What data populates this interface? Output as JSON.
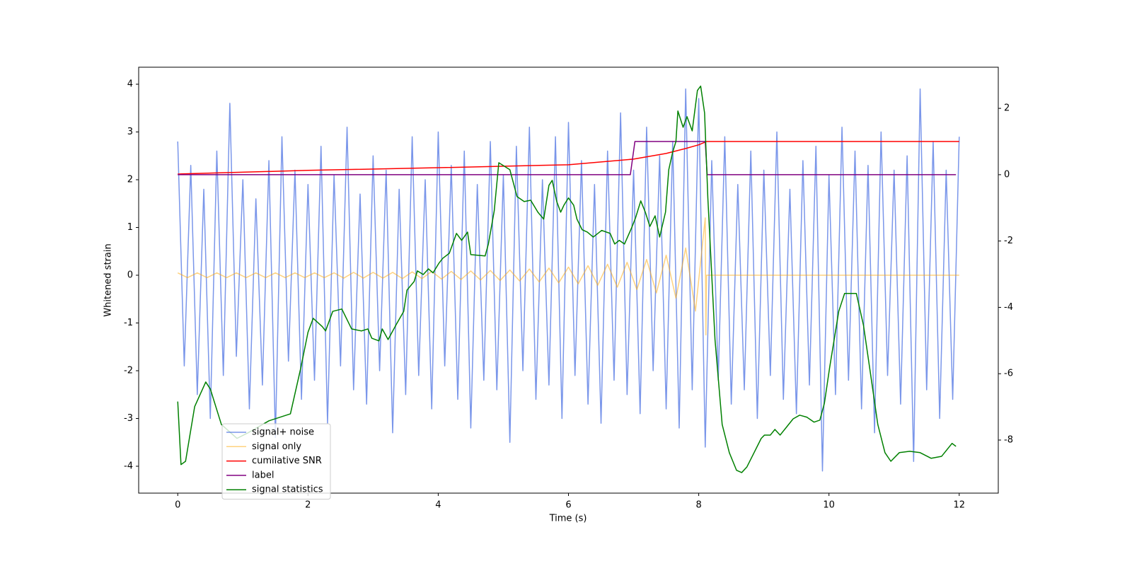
{
  "chart_data": {
    "type": "line",
    "xlabel": "Time (s)",
    "ylabel": "Whitened strain",
    "xlim": [
      -0.6,
      12.6
    ],
    "xticks": [
      0,
      2,
      4,
      6,
      8,
      10,
      12
    ],
    "ylim": [
      -4.563,
      4.356
    ],
    "yticks": [
      -4,
      -3,
      -2,
      -1,
      0,
      1,
      2,
      3,
      4
    ],
    "y2lim": [
      -9.6,
      3.24
    ],
    "y2ticks": [
      -8,
      -6,
      -4,
      -2,
      0,
      2
    ],
    "legend": "lower left",
    "series": [
      {
        "name": "signal+ noise",
        "color": "royalblue",
        "alpha": 0.7,
        "x": [
          0,
          0.1,
          0.2,
          0.3,
          0.4,
          0.5,
          0.6,
          0.7,
          0.8,
          0.9,
          1,
          1.1,
          1.2,
          1.3,
          1.4,
          1.5,
          1.6,
          1.7,
          1.8,
          1.9,
          2,
          2.1,
          2.2,
          2.3,
          2.4,
          2.5,
          2.6,
          2.7,
          2.8,
          2.9,
          3,
          3.1,
          3.2,
          3.3,
          3.4,
          3.5,
          3.6,
          3.7,
          3.8,
          3.9,
          4,
          4.1,
          4.2,
          4.3,
          4.4,
          4.5,
          4.6,
          4.7,
          4.8,
          4.9,
          5,
          5.1,
          5.2,
          5.3,
          5.4,
          5.5,
          5.6,
          5.7,
          5.8,
          5.9,
          6,
          6.1,
          6.2,
          6.3,
          6.4,
          6.5,
          6.6,
          6.7,
          6.8,
          6.9,
          7,
          7.1,
          7.2,
          7.3,
          7.4,
          7.5,
          7.6,
          7.7,
          7.8,
          7.9,
          8,
          8.1,
          8.2,
          8.3,
          8.4,
          8.5,
          8.6,
          8.7,
          8.8,
          8.9,
          9,
          9.1,
          9.2,
          9.3,
          9.4,
          9.5,
          9.6,
          9.7,
          9.8,
          9.9,
          10,
          10.1,
          10.2,
          10.3,
          10.4,
          10.5,
          10.6,
          10.7,
          10.8,
          10.9,
          11,
          11.1,
          11.2,
          11.3,
          11.4,
          11.5,
          11.6,
          11.7,
          11.8,
          11.9,
          12
        ],
        "values": [
          2.8,
          -1.9,
          2.3,
          -2.5,
          1.8,
          -3.0,
          2.6,
          -2.1,
          3.6,
          -1.7,
          2.0,
          -2.8,
          1.6,
          -2.3,
          2.4,
          -3.4,
          2.9,
          -1.8,
          2.2,
          -2.6,
          1.9,
          -2.2,
          2.7,
          -3.1,
          2.1,
          -1.9,
          3.1,
          -2.4,
          1.7,
          -2.7,
          2.5,
          -2.0,
          2.2,
          -3.3,
          1.8,
          -2.5,
          2.9,
          -2.1,
          2.0,
          -2.8,
          3.0,
          -1.9,
          2.3,
          -2.6,
          2.6,
          -3.2,
          1.9,
          -2.2,
          2.8,
          -2.4,
          2.1,
          -3.5,
          2.7,
          -2.0,
          3.1,
          -2.6,
          2.0,
          -2.3,
          2.9,
          -3.0,
          3.2,
          -2.1,
          2.4,
          -2.7,
          1.9,
          -3.1,
          2.6,
          -2.2,
          3.4,
          -2.5,
          2.2,
          -2.9,
          3.1,
          -2.0,
          2.5,
          -2.8,
          2.8,
          -3.2,
          3.9,
          -2.4,
          3.7,
          -3.6,
          2.4,
          -2.2,
          2.9,
          -2.7,
          1.9,
          -2.4,
          2.6,
          -3.0,
          2.2,
          -2.1,
          3.0,
          -2.6,
          1.8,
          -2.9,
          2.4,
          -2.3,
          2.7,
          -4.1,
          2.1,
          -2.5,
          3.1,
          -2.2,
          2.6,
          -2.8,
          2.3,
          -3.3,
          3.0,
          -2.1,
          2.2,
          -2.7,
          2.5,
          -3.9,
          3.9,
          -2.4,
          2.8,
          -3.0,
          2.2,
          -2.6,
          2.9
        ]
      },
      {
        "name": "signal only",
        "color": "orange",
        "alpha": 0.5,
        "x": [
          0,
          0.15,
          0.3,
          0.45,
          0.6,
          0.75,
          0.9,
          1.05,
          1.2,
          1.35,
          1.5,
          1.65,
          1.8,
          1.95,
          2.1,
          2.25,
          2.4,
          2.55,
          2.7,
          2.85,
          3.0,
          3.15,
          3.3,
          3.45,
          3.6,
          3.75,
          3.9,
          4.05,
          4.2,
          4.35,
          4.5,
          4.65,
          4.8,
          4.95,
          5.1,
          5.25,
          5.4,
          5.55,
          5.7,
          5.85,
          6.0,
          6.15,
          6.3,
          6.45,
          6.6,
          6.75,
          6.9,
          7.05,
          7.2,
          7.35,
          7.5,
          7.65,
          7.8,
          7.95,
          8.1,
          8.11,
          8.12,
          12
        ],
        "values": [
          0.05,
          -0.05,
          0.05,
          -0.05,
          0.05,
          -0.05,
          0.05,
          -0.05,
          0.05,
          -0.05,
          0.05,
          -0.05,
          0.05,
          -0.05,
          0.05,
          -0.05,
          0.05,
          -0.06,
          0.06,
          -0.06,
          0.06,
          -0.06,
          0.06,
          -0.07,
          0.07,
          -0.07,
          0.08,
          -0.08,
          0.08,
          -0.09,
          0.09,
          -0.1,
          0.1,
          -0.11,
          0.11,
          -0.12,
          0.13,
          -0.14,
          0.15,
          -0.16,
          0.17,
          -0.18,
          0.2,
          -0.21,
          0.23,
          -0.25,
          0.27,
          -0.3,
          0.33,
          -0.37,
          0.42,
          -0.48,
          0.57,
          -0.75,
          1.2,
          -1.25,
          0,
          0
        ]
      },
      {
        "name": "cumilative SNR",
        "color": "red",
        "axis": "y2",
        "x": [
          0,
          2,
          4,
          6,
          7,
          7.5,
          7.8,
          8.0,
          8.12,
          12
        ],
        "values": [
          0.02,
          0.13,
          0.21,
          0.3,
          0.47,
          0.64,
          0.79,
          0.9,
          1.0,
          1.0
        ]
      },
      {
        "name": "label",
        "color": "purple",
        "axis": "y2",
        "x": [
          0,
          6.95,
          7.02,
          8.1,
          8.13,
          11.95
        ],
        "values": [
          0,
          0,
          1,
          1,
          0,
          0
        ]
      },
      {
        "name": "signal statistics",
        "color": "green",
        "axis": "y2",
        "x": [
          0.0,
          0.05,
          0.12,
          0.26,
          0.43,
          0.5,
          0.67,
          0.91,
          1.08,
          1.4,
          1.73,
          1.89,
          2.0,
          2.08,
          2.22,
          2.27,
          2.38,
          2.52,
          2.67,
          2.82,
          2.92,
          2.98,
          3.09,
          3.14,
          3.23,
          3.36,
          3.47,
          3.52,
          3.63,
          3.68,
          3.77,
          3.85,
          3.92,
          4.01,
          4.07,
          4.17,
          4.28,
          4.36,
          4.45,
          4.5,
          4.72,
          4.77,
          4.86,
          4.93,
          5.1,
          5.21,
          5.32,
          5.42,
          5.53,
          5.62,
          5.7,
          5.75,
          5.82,
          5.88,
          5.93,
          6.0,
          6.08,
          6.13,
          6.21,
          6.29,
          6.38,
          6.51,
          6.64,
          6.71,
          6.78,
          6.86,
          6.97,
          7.03,
          7.11,
          7.18,
          7.25,
          7.33,
          7.4,
          7.49,
          7.54,
          7.6,
          7.65,
          7.68,
          7.76,
          7.82,
          7.9,
          7.98,
          8.03,
          8.09,
          8.14,
          8.25,
          8.36,
          8.47,
          8.58,
          8.66,
          8.74,
          8.85,
          8.96,
          9.01,
          9.1,
          9.17,
          9.25,
          9.34,
          9.45,
          9.55,
          9.66,
          9.77,
          9.86,
          9.93,
          10.01,
          10.15,
          10.24,
          10.42,
          10.53,
          10.64,
          10.75,
          10.86,
          10.95,
          11.08,
          11.24,
          11.4,
          11.57,
          11.73,
          11.89,
          11.95
        ],
        "values": [
          -6.84,
          -8.74,
          -8.64,
          -6.99,
          -6.25,
          -6.46,
          -7.53,
          -7.95,
          -7.78,
          -7.42,
          -7.21,
          -5.82,
          -4.75,
          -4.33,
          -4.58,
          -4.71,
          -4.12,
          -4.05,
          -4.65,
          -4.71,
          -4.65,
          -4.93,
          -5.01,
          -4.65,
          -4.97,
          -4.5,
          -4.12,
          -3.48,
          -3.22,
          -2.9,
          -3.01,
          -2.84,
          -2.96,
          -2.67,
          -2.52,
          -2.37,
          -1.77,
          -1.98,
          -1.73,
          -2.41,
          -2.45,
          -2.09,
          -1.09,
          0.36,
          0.15,
          -0.66,
          -0.81,
          -0.77,
          -1.13,
          -1.34,
          -0.32,
          -0.17,
          -0.81,
          -1.13,
          -0.92,
          -0.7,
          -0.92,
          -1.34,
          -1.66,
          -1.73,
          -1.88,
          -1.68,
          -1.77,
          -2.09,
          -1.98,
          -2.09,
          -1.6,
          -1.3,
          -0.79,
          -1.13,
          -1.56,
          -1.24,
          -1.88,
          -1.13,
          0.15,
          0.68,
          1.0,
          1.92,
          1.43,
          1.75,
          1.32,
          2.54,
          2.67,
          1.86,
          -0.7,
          -4.97,
          -7.53,
          -8.38,
          -8.91,
          -8.98,
          -8.81,
          -8.38,
          -7.95,
          -7.85,
          -7.85,
          -7.68,
          -7.85,
          -7.63,
          -7.36,
          -7.25,
          -7.31,
          -7.46,
          -7.4,
          -6.89,
          -5.82,
          -4.12,
          -3.58,
          -3.58,
          -4.54,
          -6.03,
          -7.53,
          -8.38,
          -8.64,
          -8.38,
          -8.34,
          -8.38,
          -8.55,
          -8.49,
          -8.1,
          -8.19
        ]
      }
    ]
  }
}
